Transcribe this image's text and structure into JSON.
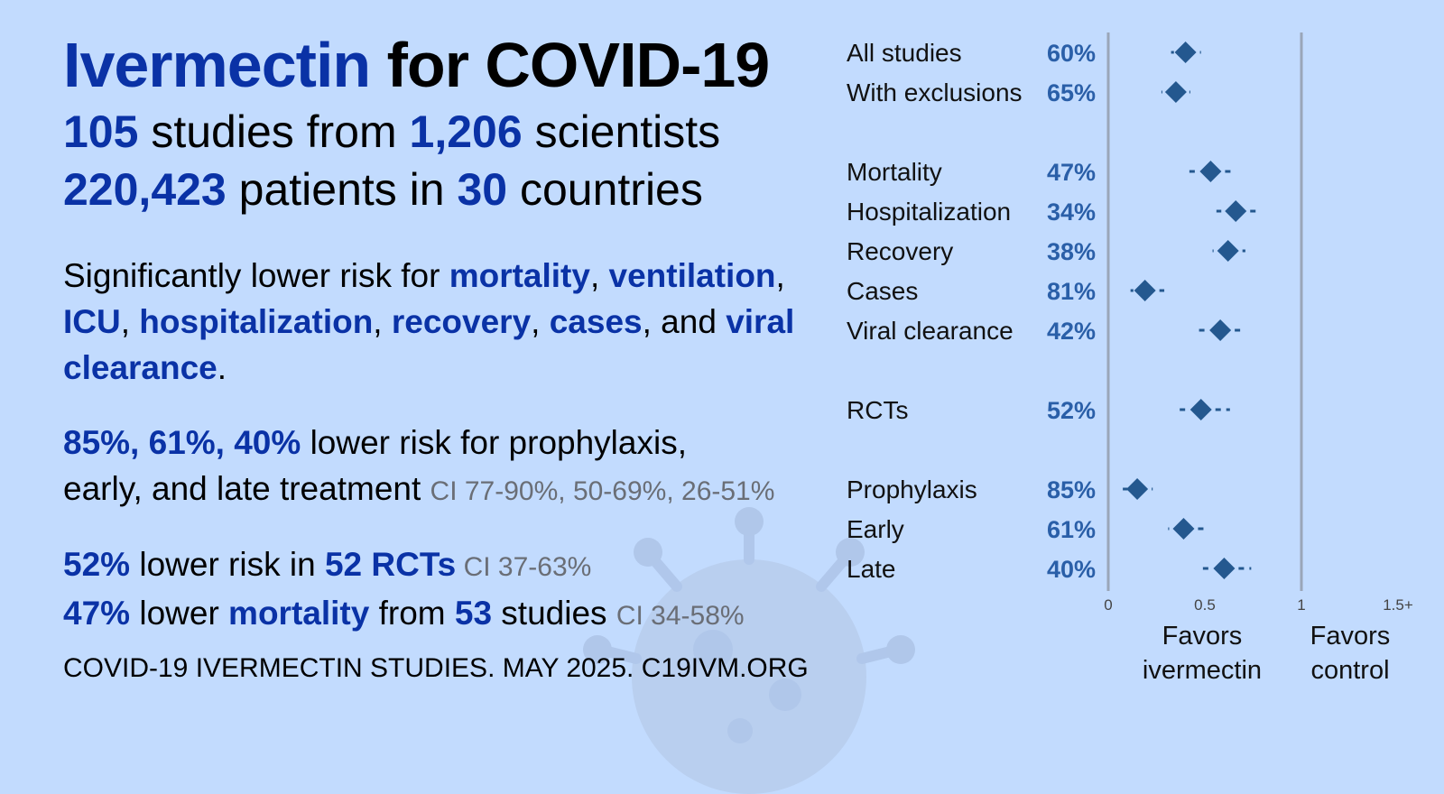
{
  "headline": {
    "drug": "Ivermectin",
    "rest": " for COVID-19",
    "line2": {
      "n_studies": "105",
      "t1": " studies from ",
      "n_scientists": "1,206",
      "t2": " scientists"
    },
    "line3": {
      "n_patients": "220,423",
      "t1": " patients in ",
      "n_countries": "30",
      "t2": " countries"
    }
  },
  "significance": {
    "lead": "Significantly lower risk for ",
    "outcomes": [
      "mortality",
      "ventilation",
      "ICU",
      "hospitalization",
      "recovery",
      "cases",
      "viral clearance"
    ],
    "and": ", and ",
    "period": "."
  },
  "treatment": {
    "pcts": "85%, 61%, 40%",
    "t1": " lower risk for prophylaxis,",
    "t2": "early, and late treatment ",
    "ci": "CI 77-90%, 50-69%, 26-51%"
  },
  "rcts": {
    "pct": "52%",
    "t1": " lower risk in ",
    "n": "52 RCTs",
    "ci": " CI 37-63%"
  },
  "mortality": {
    "pct": "47%",
    "t1": " lower ",
    "word": "mortality",
    "t2": " from ",
    "n": "53",
    "t3": " studies ",
    "ci": "CI 34-58%"
  },
  "footer": "COVID-19 IVERMECTIN STUDIES. MAY 2025. C19IVM.ORG",
  "chart_data": {
    "type": "forest",
    "xlim": [
      0,
      1.5
    ],
    "ticks": [
      {
        "value": 0,
        "label": "0"
      },
      {
        "value": 0.5,
        "label": "0.5"
      },
      {
        "value": 1,
        "label": "1"
      },
      {
        "value": 1.5,
        "label": "1.5+"
      }
    ],
    "favors_left": [
      "Favors",
      "ivermectin"
    ],
    "favors_right": [
      "Favors",
      "control"
    ],
    "groups": [
      [
        {
          "label": "All studies",
          "pct": "60%",
          "est": 0.4,
          "lo": 0.34,
          "hi": 0.48
        },
        {
          "label": "With exclusions",
          "pct": "65%",
          "est": 0.35,
          "lo": 0.28,
          "hi": 0.42
        }
      ],
      [
        {
          "label": "Mortality",
          "pct": "47%",
          "est": 0.53,
          "lo": 0.42,
          "hi": 0.66
        },
        {
          "label": "Hospitalization",
          "pct": "34%",
          "est": 0.66,
          "lo": 0.56,
          "hi": 0.79
        },
        {
          "label": "Recovery",
          "pct": "38%",
          "est": 0.62,
          "lo": 0.54,
          "hi": 0.71
        },
        {
          "label": "Cases",
          "pct": "81%",
          "est": 0.19,
          "lo": 0.13,
          "hi": 0.29
        },
        {
          "label": "Viral clearance",
          "pct": "42%",
          "est": 0.58,
          "lo": 0.47,
          "hi": 0.71
        }
      ],
      [
        {
          "label": "RCTs",
          "pct": "52%",
          "est": 0.48,
          "lo": 0.37,
          "hi": 0.63
        }
      ],
      [
        {
          "label": "Prophylaxis",
          "pct": "85%",
          "est": 0.15,
          "lo": 0.1,
          "hi": 0.23
        },
        {
          "label": "Early",
          "pct": "61%",
          "est": 0.39,
          "lo": 0.31,
          "hi": 0.5
        },
        {
          "label": "Late",
          "pct": "40%",
          "est": 0.6,
          "lo": 0.49,
          "hi": 0.74
        }
      ]
    ],
    "colors": {
      "marker": "#24588f",
      "axis": "#9aa6b8",
      "accent": "#0a32a6"
    }
  }
}
